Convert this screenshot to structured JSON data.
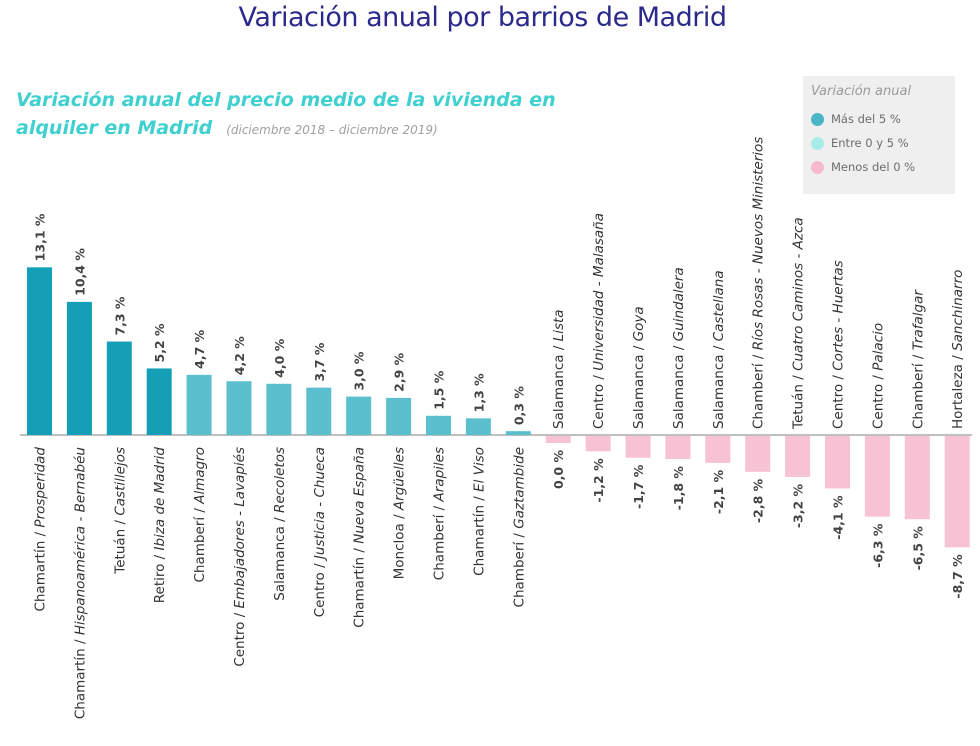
{
  "page": {
    "title": "Variación anual por barrios de Madrid",
    "subtitle_line1": "Variación anual del precio medio de la vivienda en",
    "subtitle_line2": "alquiler en Madrid",
    "period": "(diciembre 2018 – diciembre 2019)"
  },
  "legend": {
    "title": "Variación anual",
    "items": [
      {
        "label": "Más del 5 %",
        "color": "#49b5c6"
      },
      {
        "label": "Entre 0 y 5 %",
        "color": "#a8ece8"
      },
      {
        "label": "Menos del 0 %",
        "color": "#f6b9cf"
      }
    ]
  },
  "colors": {
    "dark": "#159fb7",
    "light": "#5bbfcd",
    "negative": "#f6c2d4",
    "axis": "#aaaaaa",
    "label_text": "#333333",
    "value_text": "#444444"
  },
  "chart_data": {
    "type": "bar",
    "title": "Variación anual del precio medio de la vivienda en alquiler en Madrid",
    "ylabel": "",
    "xlabel": "",
    "ylim": [
      -9,
      14
    ],
    "unit": "%",
    "series": [
      {
        "values": [
          13.1,
          10.4,
          7.3,
          5.2,
          4.7,
          4.2,
          4.0,
          3.7,
          3.0,
          2.9,
          1.5,
          1.3,
          0.3,
          0.0,
          -1.2,
          -1.7,
          -1.8,
          -2.1,
          -2.8,
          -3.2,
          -4.1,
          -6.3,
          -6.5,
          -8.7
        ]
      }
    ],
    "categories": [
      {
        "district": "Chamartín",
        "barrio": "Prosperidad",
        "value_label": "13,1 %",
        "tier": "dark"
      },
      {
        "district": "Chamartín",
        "barrio": "Hispanoamérica - Bernabéu",
        "value_label": "10,4 %",
        "tier": "dark"
      },
      {
        "district": "Tetuán",
        "barrio": "Castillejos",
        "value_label": "7,3 %",
        "tier": "dark"
      },
      {
        "district": "Retiro",
        "barrio": "Ibiza de Madrid",
        "value_label": "5,2 %",
        "tier": "dark"
      },
      {
        "district": "Chamberí",
        "barrio": "Almagro",
        "value_label": "4,7 %",
        "tier": "light"
      },
      {
        "district": "Centro",
        "barrio": "Embajadores - Lavapiés",
        "value_label": "4,2 %",
        "tier": "light"
      },
      {
        "district": "Salamanca",
        "barrio": "Recoletos",
        "value_label": "4,0 %",
        "tier": "light"
      },
      {
        "district": "Centro",
        "barrio": "Justicia - Chueca",
        "value_label": "3,7 %",
        "tier": "light"
      },
      {
        "district": "Chamartín",
        "barrio": "Nueva España",
        "value_label": "3,0 %",
        "tier": "light"
      },
      {
        "district": "Moncloa",
        "barrio": "Argüelles",
        "value_label": "2,9 %",
        "tier": "light"
      },
      {
        "district": "Chamberí",
        "barrio": "Arapiles",
        "value_label": "1,5 %",
        "tier": "light"
      },
      {
        "district": "Chamartín",
        "barrio": "El Viso",
        "value_label": "1,3 %",
        "tier": "light"
      },
      {
        "district": "Chamberí",
        "barrio": "Gaztambide",
        "value_label": "0,3 %",
        "tier": "light"
      },
      {
        "district": "Salamanca",
        "barrio": "Lista",
        "value_label": "0,0 %",
        "tier": "negative"
      },
      {
        "district": "Centro",
        "barrio": "Universidad - Malasaña",
        "value_label": "-1,2 %",
        "tier": "negative"
      },
      {
        "district": "Salamanca",
        "barrio": "Goya",
        "value_label": "-1,7 %",
        "tier": "negative"
      },
      {
        "district": "Salamanca",
        "barrio": "Guindalera",
        "value_label": "-1,8 %",
        "tier": "negative"
      },
      {
        "district": "Salamanca",
        "barrio": "Castellana",
        "value_label": "-2,1 %",
        "tier": "negative"
      },
      {
        "district": "Chamberí",
        "barrio": "Ríos Rosas - Nuevos Ministerios",
        "value_label": "-2,8 %",
        "tier": "negative"
      },
      {
        "district": "Tetuán",
        "barrio": "Cuatro Caminos - Azca",
        "value_label": "-3,2 %",
        "tier": "negative"
      },
      {
        "district": "Centro",
        "barrio": "Cortes - Huertas",
        "value_label": "-4,1 %",
        "tier": "negative"
      },
      {
        "district": "Centro",
        "barrio": "Palacio",
        "value_label": "-6,3 %",
        "tier": "negative"
      },
      {
        "district": "Chamberí",
        "barrio": "Trafalgar",
        "value_label": "-6,5 %",
        "tier": "negative"
      },
      {
        "district": "Hortaleza",
        "barrio": "Sanchinarro",
        "value_label": "-8,7 %",
        "tier": "negative"
      }
    ],
    "grid": false,
    "legend_position": "top-right"
  }
}
